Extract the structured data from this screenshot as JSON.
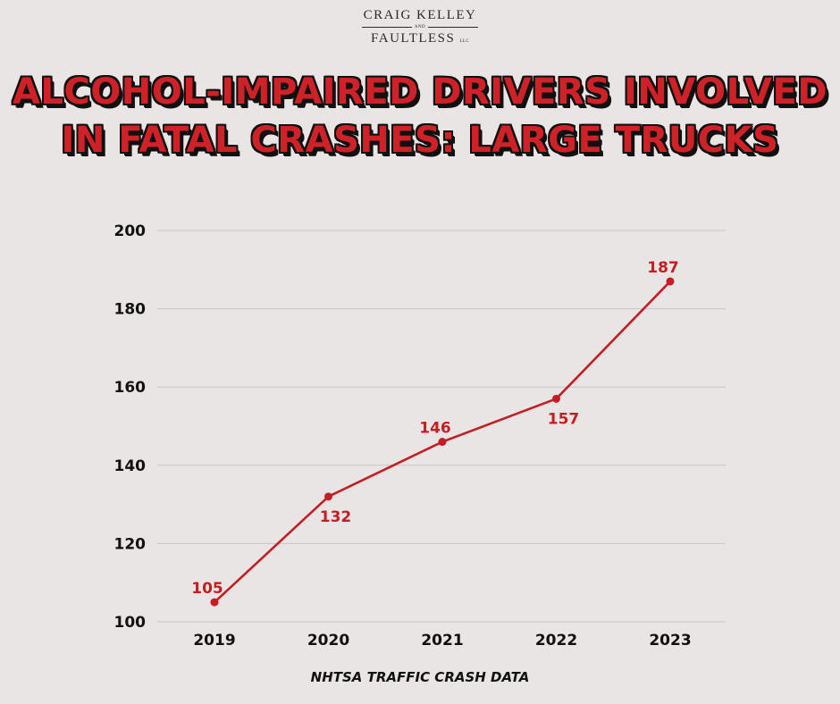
{
  "logo": {
    "line1": "CRAIG KELLEY",
    "and": "AND",
    "line2": "FAULTLESS",
    "llc": "LLC"
  },
  "title_lines": [
    "ALCOHOL-IMPAIRED DRIVERS INVOLVED",
    "IN FATAL CRASHES: LARGE TRUCKS"
  ],
  "source": "NHTSA TRAFFIC CRASH DATA",
  "colors": {
    "background": "#e9e5e4",
    "accent": "#c41e24",
    "grid": "#c9c5c4",
    "text": "#111111"
  },
  "chart_data": {
    "type": "line",
    "title": "ALCOHOL-IMPAIRED DRIVERS INVOLVED IN FATAL CRASHES: LARGE TRUCKS",
    "xlabel": "",
    "ylabel": "",
    "categories": [
      "2019",
      "2020",
      "2021",
      "2022",
      "2023"
    ],
    "values": [
      105,
      132,
      146,
      157,
      187
    ],
    "data_labels": [
      "105",
      "132",
      "146",
      "157",
      "187"
    ],
    "label_positions": [
      "above",
      "below",
      "above",
      "below",
      "above"
    ],
    "ylim": [
      100,
      200
    ],
    "yticks": [
      100,
      120,
      140,
      160,
      180,
      200
    ],
    "ytick_labels": [
      "100",
      "120",
      "140",
      "160",
      "180",
      "200"
    ],
    "grid": true,
    "legend": "none"
  }
}
